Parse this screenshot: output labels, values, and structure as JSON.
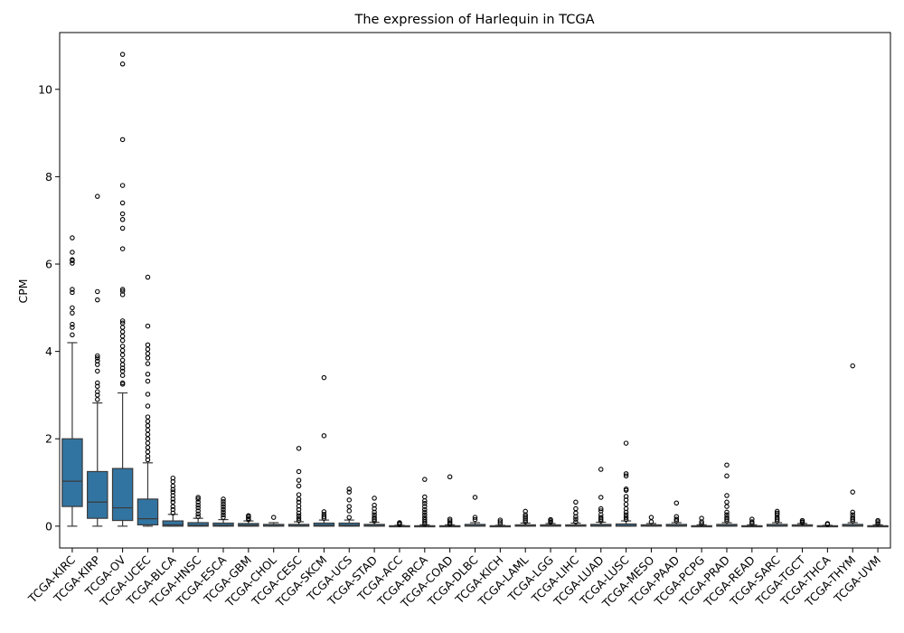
{
  "chart_data": {
    "type": "box",
    "title": "The expression of Harlequin in TCGA",
    "xlabel": "",
    "ylabel": "CPM",
    "ylim": [
      -0.5,
      11.3
    ],
    "yticks": [
      0,
      2,
      4,
      6,
      8,
      10
    ],
    "grid": false,
    "legend": "none",
    "box_color": "#3274a1",
    "line_color": "#3a3a3a",
    "categories": [
      "TCGA-KIRC",
      "TCGA-KIRP",
      "TCGA-OV",
      "TCGA-UCEC",
      "TCGA-BLCA",
      "TCGA-HNSC",
      "TCGA-ESCA",
      "TCGA-GBM",
      "TCGA-CHOL",
      "TCGA-CESC",
      "TCGA-SKCM",
      "TCGA-UCS",
      "TCGA-STAD",
      "TCGA-ACC",
      "TCGA-BRCA",
      "TCGA-COAD",
      "TCGA-DLBC",
      "TCGA-KICH",
      "TCGA-LAML",
      "TCGA-LGG",
      "TCGA-LIHC",
      "TCGA-LUAD",
      "TCGA-LUSC",
      "TCGA-MESO",
      "TCGA-PAAD",
      "TCGA-PCPG",
      "TCGA-PRAD",
      "TCGA-READ",
      "TCGA-SARC",
      "TCGA-TGCT",
      "TCGA-THCA",
      "TCGA-THYM",
      "TCGA-UVM"
    ],
    "boxes": [
      {
        "min": 0.0,
        "q1": 0.45,
        "median": 1.03,
        "q3": 2.0,
        "max": 4.2,
        "outliers": [
          4.38,
          4.55,
          4.62,
          4.88,
          5.0,
          5.35,
          5.42,
          6.02,
          6.08,
          6.1,
          6.27,
          6.6
        ]
      },
      {
        "min": 0.0,
        "q1": 0.18,
        "median": 0.55,
        "q3": 1.25,
        "max": 2.82,
        "outliers": [
          2.9,
          3.0,
          3.08,
          3.2,
          3.28,
          3.55,
          3.7,
          3.78,
          3.85,
          3.9,
          5.18,
          5.37,
          7.55
        ]
      },
      {
        "min": 0.0,
        "q1": 0.13,
        "median": 0.42,
        "q3": 1.32,
        "max": 3.05,
        "outliers": [
          3.25,
          3.28,
          3.45,
          3.55,
          3.62,
          3.7,
          3.8,
          3.92,
          4.02,
          4.12,
          4.25,
          4.35,
          4.45,
          4.55,
          4.65,
          4.7,
          5.3,
          5.38,
          5.42,
          6.35,
          6.82,
          7.02,
          7.15,
          7.4,
          7.8,
          8.85,
          10.58,
          10.8
        ]
      },
      {
        "min": 0.0,
        "q1": 0.03,
        "median": 0.17,
        "q3": 0.62,
        "max": 1.45,
        "outliers": [
          1.52,
          1.6,
          1.7,
          1.8,
          1.9,
          2.0,
          2.1,
          2.2,
          2.3,
          2.4,
          2.5,
          2.75,
          3.02,
          3.32,
          3.48,
          3.72,
          3.85,
          3.95,
          4.05,
          4.15,
          4.58,
          5.7
        ]
      },
      {
        "min": 0.0,
        "q1": 0.0,
        "median": 0.03,
        "q3": 0.12,
        "max": 0.27,
        "outliers": [
          0.3,
          0.38,
          0.45,
          0.55,
          0.62,
          0.7,
          0.78,
          0.84,
          0.92,
          1.02,
          1.1
        ]
      },
      {
        "min": 0.0,
        "q1": 0.0,
        "median": 0.02,
        "q3": 0.08,
        "max": 0.18,
        "outliers": [
          0.22,
          0.28,
          0.35,
          0.42,
          0.48,
          0.55,
          0.62,
          0.66
        ]
      },
      {
        "min": 0.0,
        "q1": 0.0,
        "median": 0.02,
        "q3": 0.07,
        "max": 0.15,
        "outliers": [
          0.2,
          0.26,
          0.32,
          0.38,
          0.44,
          0.5,
          0.56,
          0.62
        ]
      },
      {
        "min": 0.0,
        "q1": 0.0,
        "median": 0.02,
        "q3": 0.06,
        "max": 0.12,
        "outliers": [
          0.15,
          0.18,
          0.22,
          0.24
        ]
      },
      {
        "min": 0.0,
        "q1": 0.0,
        "median": 0.01,
        "q3": 0.04,
        "max": 0.08,
        "outliers": [
          0.2
        ]
      },
      {
        "min": 0.0,
        "q1": 0.0,
        "median": 0.01,
        "q3": 0.04,
        "max": 0.1,
        "outliers": [
          0.13,
          0.18,
          0.24,
          0.3,
          0.38,
          0.46,
          0.55,
          0.62,
          0.72,
          0.92,
          1.05,
          1.25,
          1.78
        ]
      },
      {
        "min": 0.0,
        "q1": 0.0,
        "median": 0.02,
        "q3": 0.07,
        "max": 0.14,
        "outliers": [
          0.18,
          0.22,
          0.27,
          0.33,
          2.07,
          3.4
        ]
      },
      {
        "min": 0.0,
        "q1": 0.0,
        "median": 0.02,
        "q3": 0.07,
        "max": 0.14,
        "outliers": [
          0.2,
          0.35,
          0.45,
          0.6,
          0.78,
          0.85
        ]
      },
      {
        "min": 0.0,
        "q1": 0.0,
        "median": 0.01,
        "q3": 0.04,
        "max": 0.09,
        "outliers": [
          0.12,
          0.16,
          0.2,
          0.26,
          0.32,
          0.4,
          0.48,
          0.64
        ]
      },
      {
        "min": 0.0,
        "q1": 0.0,
        "median": 0.0,
        "q3": 0.01,
        "max": 0.02,
        "outliers": [
          0.04,
          0.06,
          0.08
        ]
      },
      {
        "min": 0.0,
        "q1": 0.0,
        "median": 0.0,
        "q3": 0.01,
        "max": 0.03,
        "outliers": [
          0.05,
          0.1,
          0.15,
          0.2,
          0.26,
          0.32,
          0.38,
          0.45,
          0.52,
          0.58,
          0.67,
          1.07
        ]
      },
      {
        "min": 0.0,
        "q1": 0.0,
        "median": 0.0,
        "q3": 0.01,
        "max": 0.03,
        "outliers": [
          0.05,
          0.08,
          0.12,
          0.16,
          1.13
        ]
      },
      {
        "min": 0.0,
        "q1": 0.0,
        "median": 0.01,
        "q3": 0.04,
        "max": 0.08,
        "outliers": [
          0.15,
          0.2,
          0.66
        ]
      },
      {
        "min": 0.0,
        "q1": 0.0,
        "median": 0.0,
        "q3": 0.01,
        "max": 0.02,
        "outliers": [
          0.06,
          0.1,
          0.14
        ]
      },
      {
        "min": 0.0,
        "q1": 0.0,
        "median": 0.01,
        "q3": 0.03,
        "max": 0.07,
        "outliers": [
          0.1,
          0.14,
          0.18,
          0.22,
          0.26,
          0.34
        ]
      },
      {
        "min": 0.0,
        "q1": 0.0,
        "median": 0.01,
        "q3": 0.03,
        "max": 0.06,
        "outliers": [
          0.09,
          0.12,
          0.15
        ]
      },
      {
        "min": 0.0,
        "q1": 0.0,
        "median": 0.01,
        "q3": 0.03,
        "max": 0.07,
        "outliers": [
          0.1,
          0.16,
          0.22,
          0.3,
          0.4,
          0.55
        ]
      },
      {
        "min": 0.0,
        "q1": 0.0,
        "median": 0.01,
        "q3": 0.04,
        "max": 0.09,
        "outliers": [
          0.12,
          0.16,
          0.2,
          0.26,
          0.35,
          0.4,
          0.66,
          1.3
        ]
      },
      {
        "min": 0.0,
        "q1": 0.0,
        "median": 0.01,
        "q3": 0.05,
        "max": 0.12,
        "outliers": [
          0.15,
          0.2,
          0.26,
          0.32,
          0.4,
          0.5,
          0.6,
          0.68,
          0.82,
          0.85,
          1.15,
          1.2,
          1.9
        ]
      },
      {
        "min": 0.0,
        "q1": 0.0,
        "median": 0.01,
        "q3": 0.03,
        "max": 0.06,
        "outliers": [
          0.1,
          0.2
        ]
      },
      {
        "min": 0.0,
        "q1": 0.0,
        "median": 0.01,
        "q3": 0.04,
        "max": 0.08,
        "outliers": [
          0.12,
          0.16,
          0.22,
          0.53
        ]
      },
      {
        "min": 0.0,
        "q1": 0.0,
        "median": 0.0,
        "q3": 0.01,
        "max": 0.03,
        "outliers": [
          0.06,
          0.1,
          0.18
        ]
      },
      {
        "min": 0.0,
        "q1": 0.0,
        "median": 0.01,
        "q3": 0.04,
        "max": 0.08,
        "outliers": [
          0.12,
          0.16,
          0.2,
          0.26,
          0.32,
          0.45,
          0.55,
          0.7,
          1.15,
          1.4
        ]
      },
      {
        "min": 0.0,
        "q1": 0.0,
        "median": 0.0,
        "q3": 0.01,
        "max": 0.03,
        "outliers": [
          0.06,
          0.1,
          0.16
        ]
      },
      {
        "min": 0.0,
        "q1": 0.0,
        "median": 0.01,
        "q3": 0.04,
        "max": 0.08,
        "outliers": [
          0.12,
          0.16,
          0.2,
          0.26,
          0.3,
          0.34
        ]
      },
      {
        "min": 0.0,
        "q1": 0.0,
        "median": 0.01,
        "q3": 0.03,
        "max": 0.06,
        "outliers": [
          0.08,
          0.1,
          0.13
        ]
      },
      {
        "min": 0.0,
        "q1": 0.0,
        "median": 0.0,
        "q3": 0.01,
        "max": 0.02,
        "outliers": [
          0.04,
          0.06
        ]
      },
      {
        "min": 0.0,
        "q1": 0.0,
        "median": 0.01,
        "q3": 0.04,
        "max": 0.08,
        "outliers": [
          0.12,
          0.16,
          0.2,
          0.26,
          0.32,
          0.78,
          3.67
        ]
      },
      {
        "min": 0.0,
        "q1": 0.0,
        "median": 0.0,
        "q3": 0.01,
        "max": 0.03,
        "outliers": [
          0.06,
          0.1,
          0.13
        ]
      }
    ]
  }
}
